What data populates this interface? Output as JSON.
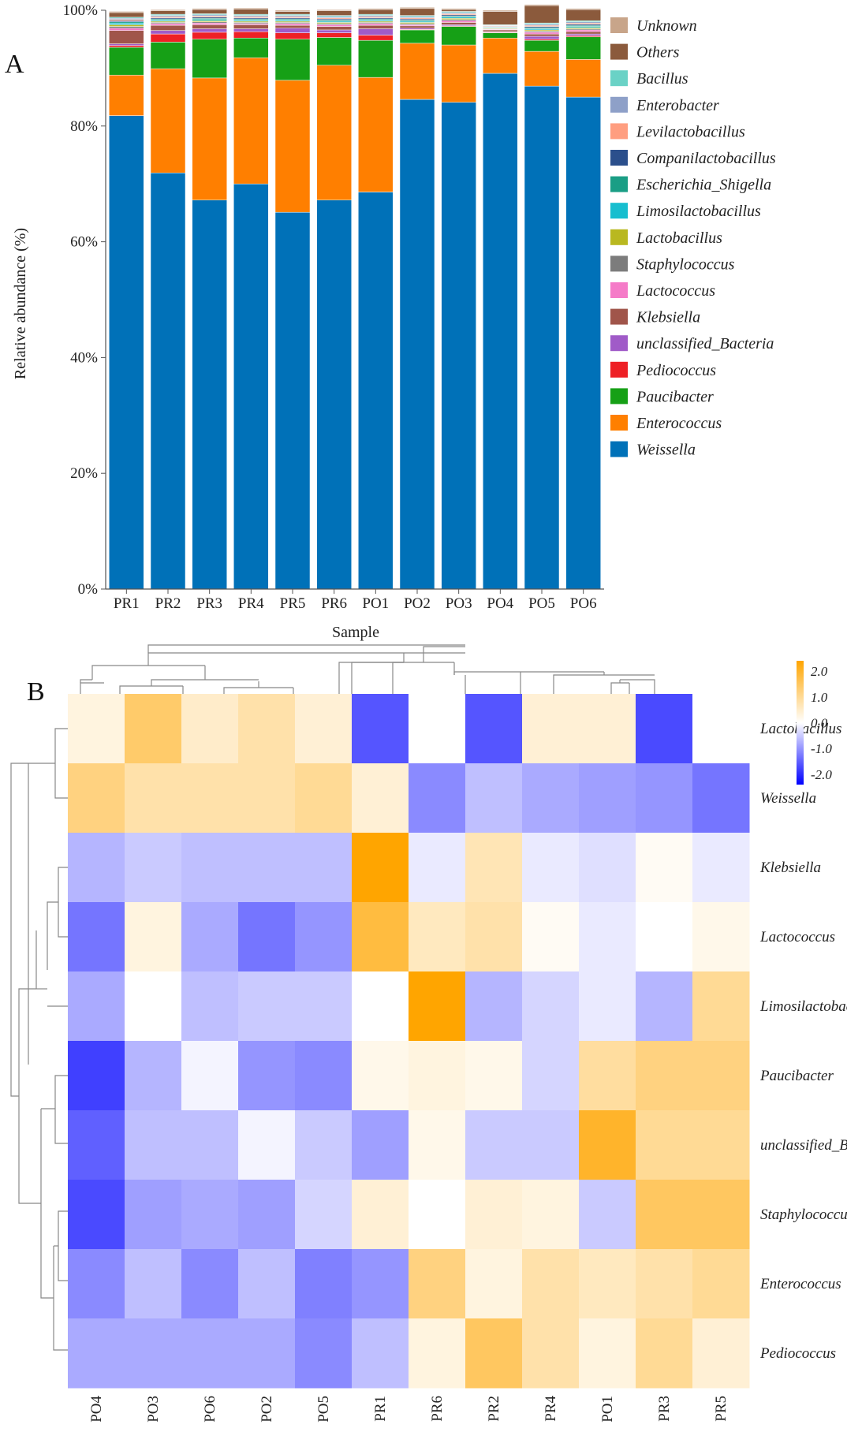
{
  "chart_data": [
    {
      "type": "stacked-bar",
      "panel_label": "A",
      "xlabel": "Sample",
      "ylabel": "Relative abundance (%)",
      "ylim": [
        0,
        100
      ],
      "yticks": [
        "0%",
        "20%",
        "40%",
        "60%",
        "80%",
        "100%"
      ],
      "categories": [
        "PR1",
        "PR2",
        "PR3",
        "PR4",
        "PR5",
        "PR6",
        "PO1",
        "PO2",
        "PO3",
        "PO4",
        "PO5",
        "PO6"
      ],
      "series": [
        {
          "name": "Weissella",
          "color": "#0071b8",
          "values": [
            81.8,
            71.9,
            67.2,
            70.0,
            65.1,
            67.2,
            68.6,
            84.6,
            84.1,
            89.1,
            86.9,
            85.0
          ]
        },
        {
          "name": "Enterococcus",
          "color": "#ff7f00",
          "values": [
            7.0,
            18.0,
            21.1,
            21.8,
            22.8,
            23.3,
            19.8,
            9.7,
            9.9,
            6.1,
            6.0,
            6.5
          ]
        },
        {
          "name": "Paucibacter",
          "color": "#16a016",
          "values": [
            4.8,
            4.6,
            6.7,
            3.4,
            7.1,
            4.8,
            6.4,
            2.3,
            3.2,
            0.9,
            1.9,
            3.9
          ]
        },
        {
          "name": "Pediococcus",
          "color": "#ee2025",
          "values": [
            0.3,
            1.4,
            1.2,
            1.1,
            1.1,
            0.8,
            0.9,
            0.1,
            0.1,
            0.1,
            0.2,
            0.2
          ]
        },
        {
          "name": "unclassified_Bacteria",
          "color": "#a05bc8",
          "values": [
            0.3,
            0.6,
            0.6,
            0.5,
            0.8,
            0.5,
            1.1,
            0.2,
            0.2,
            0.1,
            0.5,
            0.3
          ]
        },
        {
          "name": "Klebsiella",
          "color": "#a0554a",
          "values": [
            2.3,
            0.9,
            0.7,
            0.7,
            0.5,
            0.6,
            0.6,
            0.4,
            0.4,
            0.3,
            0.4,
            0.4
          ]
        },
        {
          "name": "Lactococcus",
          "color": "#f57bc8",
          "values": [
            0.4,
            0.3,
            0.3,
            0.2,
            0.3,
            0.3,
            0.3,
            0.2,
            0.3,
            0.1,
            0.3,
            0.3
          ]
        },
        {
          "name": "Staphylococcus",
          "color": "#7c7c7c",
          "values": [
            0.3,
            0.2,
            0.2,
            0.2,
            0.2,
            0.2,
            0.2,
            0.2,
            0.2,
            0.1,
            0.2,
            0.2
          ]
        },
        {
          "name": "Lactobacillus",
          "color": "#b9b820",
          "values": [
            0.3,
            0.2,
            0.2,
            0.2,
            0.2,
            0.2,
            0.2,
            0.2,
            0.2,
            0.1,
            0.2,
            0.2
          ]
        },
        {
          "name": "Limosilactobacillus",
          "color": "#17becf",
          "values": [
            0.3,
            0.2,
            0.2,
            0.2,
            0.2,
            0.2,
            0.2,
            0.2,
            0.2,
            0.1,
            0.2,
            0.2
          ]
        },
        {
          "name": "Escherichia_Shigella",
          "color": "#1a9e85",
          "values": [
            0.2,
            0.2,
            0.2,
            0.2,
            0.2,
            0.2,
            0.2,
            0.2,
            0.2,
            0.1,
            0.2,
            0.2
          ]
        },
        {
          "name": "Companilactobacillus",
          "color": "#2b4f8c",
          "values": [
            0.2,
            0.2,
            0.2,
            0.2,
            0.2,
            0.2,
            0.2,
            0.2,
            0.2,
            0.1,
            0.2,
            0.2
          ]
        },
        {
          "name": "Levilactobacillus",
          "color": "#ff9e80",
          "values": [
            0.2,
            0.2,
            0.2,
            0.2,
            0.2,
            0.2,
            0.2,
            0.2,
            0.2,
            0.1,
            0.2,
            0.2
          ]
        },
        {
          "name": "Enterobacter",
          "color": "#8ea0c8",
          "values": [
            0.2,
            0.2,
            0.2,
            0.2,
            0.2,
            0.2,
            0.2,
            0.2,
            0.2,
            0.1,
            0.2,
            0.2
          ]
        },
        {
          "name": "Bacillus",
          "color": "#6ad2c6",
          "values": [
            0.2,
            0.2,
            0.2,
            0.2,
            0.2,
            0.2,
            0.2,
            0.2,
            0.2,
            0.1,
            0.2,
            0.2
          ]
        },
        {
          "name": "Others",
          "color": "#8b5a3c",
          "values": [
            0.8,
            0.6,
            0.7,
            0.9,
            0.5,
            0.8,
            0.8,
            1.2,
            0.3,
            2.3,
            3.0,
            1.9
          ]
        },
        {
          "name": "Unknown",
          "color": "#c8a58a",
          "values": [
            0.2,
            0.2,
            0.2,
            0.2,
            0.2,
            0.2,
            0.2,
            0.2,
            0.2,
            0.2,
            0.2,
            0.2
          ]
        }
      ],
      "legend_order": [
        "Unknown",
        "Others",
        "Bacillus",
        "Enterobacter",
        "Levilactobacillus",
        "Companilactobacillus",
        "Escherichia_Shigella",
        "Limosilactobacillus",
        "Lactobacillus",
        "Staphylococcus",
        "Lactococcus",
        "Klebsiella",
        "unclassified_Bacteria",
        "Pediococcus",
        "Paucibacter",
        "Enterococcus",
        "Weissella"
      ],
      "legend_position": "right"
    },
    {
      "type": "heatmap",
      "panel_label": "B",
      "columns": [
        "PO4",
        "PO3",
        "PO6",
        "PO2",
        "PO5",
        "PR1",
        "PR6",
        "PR2",
        "PR4",
        "PO1",
        "PR3",
        "PR5"
      ],
      "rows": [
        "Lactobacillus",
        "Weissella",
        "Klebsiella",
        "Lactococcus",
        "Limosilactobacillus",
        "Paucibacter",
        "unclassified_Bacteria",
        "Staphylococcus",
        "Enterococcus",
        "Pediococcus"
      ],
      "values": [
        [
          0.3,
          1.4,
          0.5,
          0.8,
          0.4,
          -1.6,
          0.0,
          -1.6,
          0.4,
          0.4,
          -1.7,
          0.0
        ],
        [
          1.2,
          0.8,
          0.8,
          0.8,
          1.0,
          0.4,
          -1.1,
          -0.6,
          -0.8,
          -0.9,
          -1.0,
          -1.3
        ],
        [
          -0.7,
          -0.5,
          -0.6,
          -0.6,
          -0.6,
          2.5,
          -0.2,
          0.7,
          -0.2,
          -0.3,
          0.1,
          -0.2
        ],
        [
          -1.3,
          0.3,
          -0.8,
          -1.3,
          -1.0,
          1.8,
          0.6,
          0.8,
          0.1,
          -0.2,
          0.0,
          0.2
        ],
        [
          -0.8,
          0.0,
          -0.6,
          -0.5,
          -0.5,
          0.0,
          2.5,
          -0.7,
          -0.4,
          -0.2,
          -0.7,
          1.0
        ],
        [
          -1.8,
          -0.7,
          -0.1,
          -1.0,
          -1.1,
          0.2,
          0.3,
          0.2,
          -0.4,
          0.9,
          1.2,
          1.2
        ],
        [
          -1.5,
          -0.6,
          -0.6,
          -0.1,
          -0.5,
          -0.9,
          0.2,
          -0.5,
          -0.5,
          2.0,
          1.0,
          1.0
        ],
        [
          -1.7,
          -0.9,
          -0.8,
          -0.9,
          -0.4,
          0.4,
          0.0,
          0.4,
          0.3,
          -0.5,
          1.5,
          1.5
        ],
        [
          -1.1,
          -0.6,
          -1.1,
          -0.6,
          -1.2,
          -1.0,
          1.2,
          0.3,
          0.8,
          0.6,
          0.8,
          1.0
        ],
        [
          -0.8,
          -0.8,
          -0.8,
          -0.8,
          -1.1,
          -0.6,
          0.3,
          1.5,
          0.8,
          0.3,
          1.0,
          0.4
        ]
      ],
      "colorbar": {
        "min": -2.4,
        "max": 2.4,
        "ticks": [
          "2.0",
          "1.0",
          "0.0",
          "-1.0",
          "-2.0"
        ],
        "low_color": "#0000ff",
        "mid_color": "#ffffff",
        "high_color": "#ffa500"
      },
      "column_dendrogram": true,
      "row_dendrogram": true
    }
  ]
}
